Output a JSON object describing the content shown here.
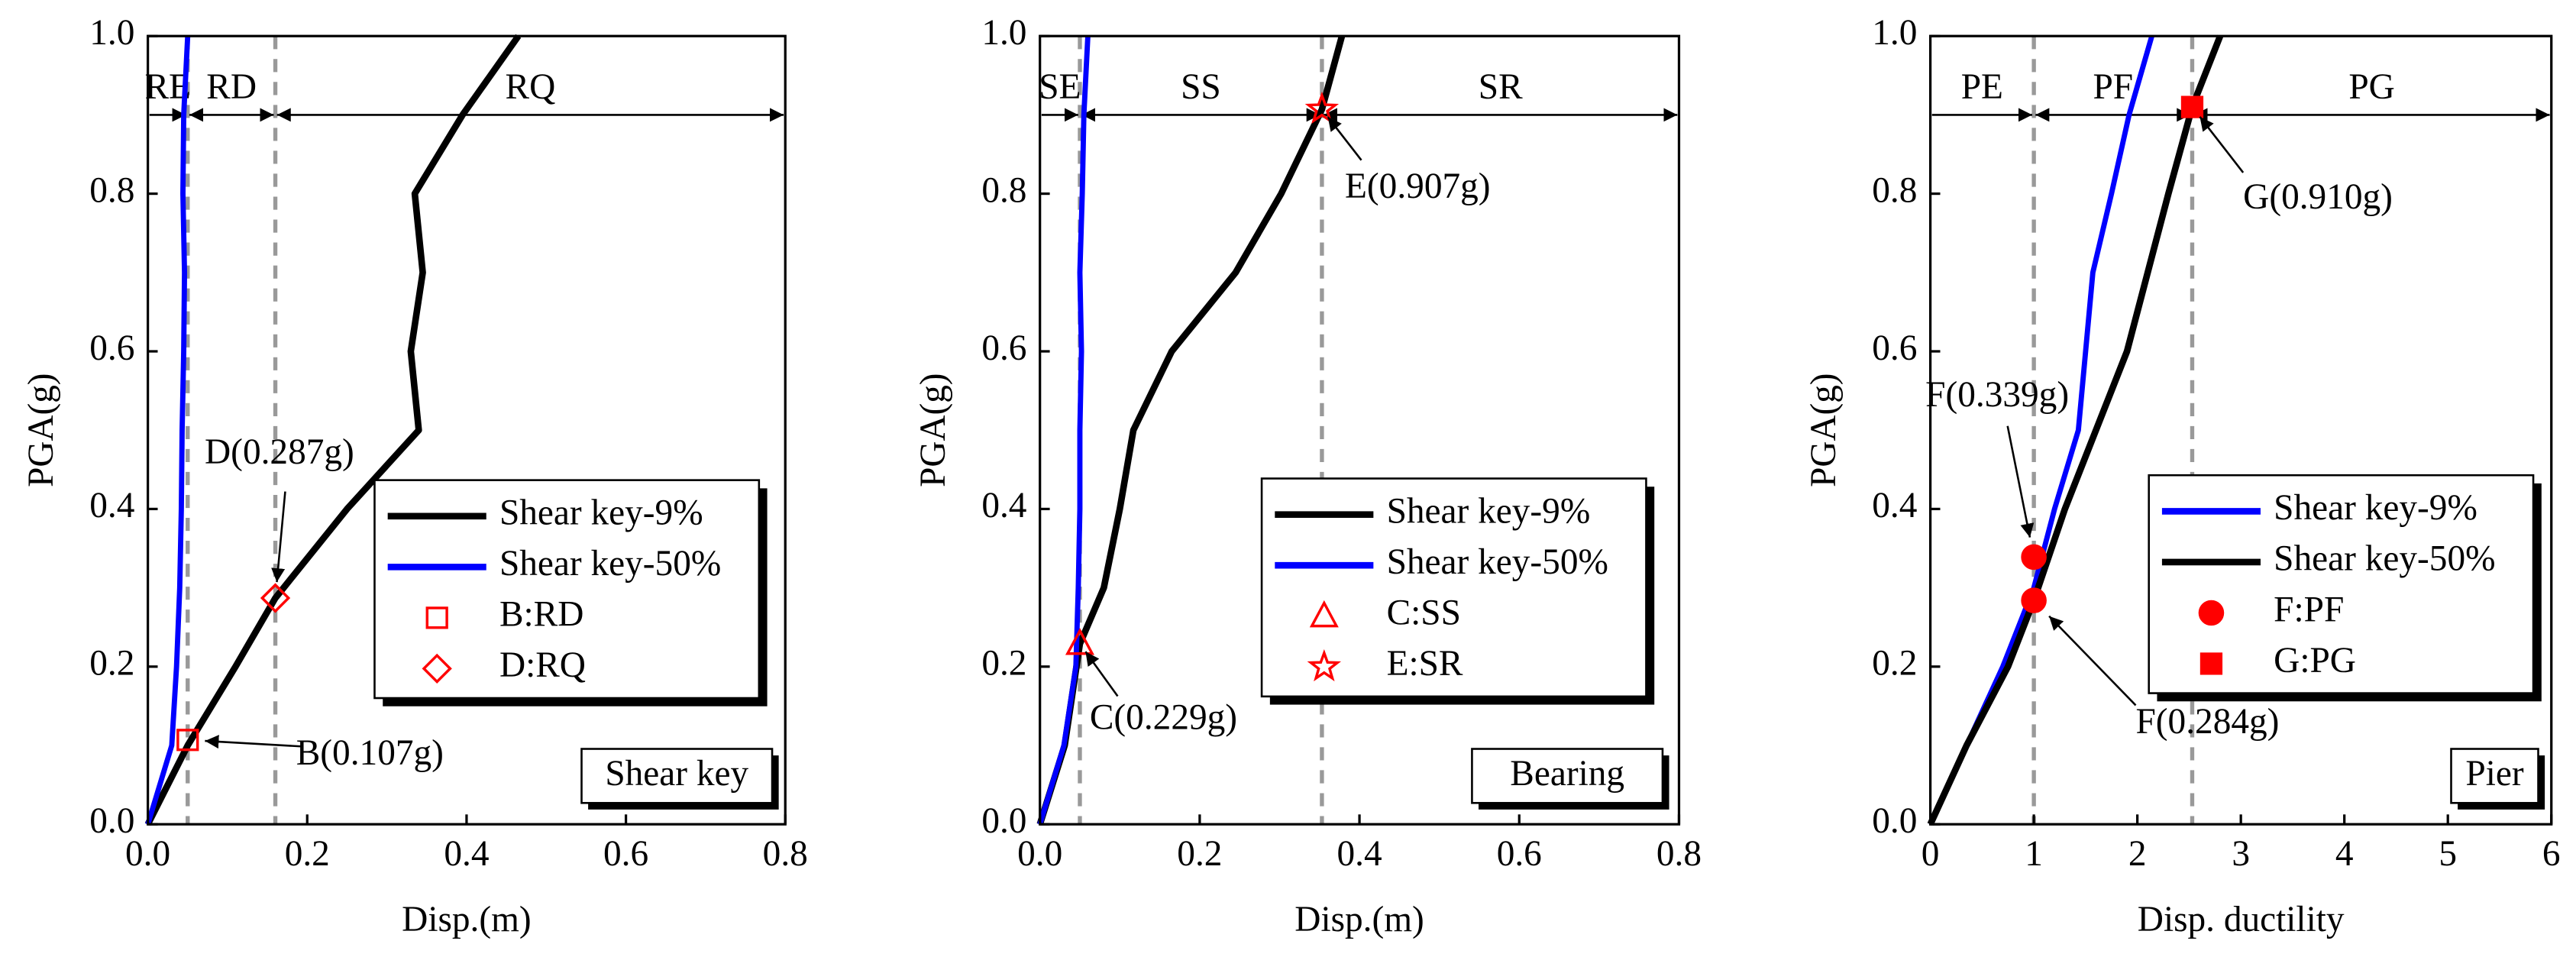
{
  "chart_data": [
    {
      "type": "line",
      "xlabel": "Disp.(m)",
      "ylabel": "PGA(g)",
      "xlim": [
        0,
        0.8
      ],
      "ylim": [
        0,
        1
      ],
      "xticks": [
        {
          "value": 0,
          "label": "0.0"
        },
        0.2,
        0.4,
        0.6,
        0.8
      ],
      "yticks": [
        {
          "value": 0,
          "label": "0.0"
        },
        0.2,
        0.4,
        0.6,
        0.8,
        {
          "value": 1,
          "label": "1.0"
        }
      ],
      "thresholds": [
        0.05,
        0.16
      ],
      "regions": [
        "RE",
        "RD",
        "RQ"
      ],
      "box_label": "Shear key",
      "series": [
        {
          "name": "Shear key-9%",
          "color": "#000000",
          "x": [
            0,
            0.05,
            0.11,
            0.16,
            0.25,
            0.34,
            0.33,
            0.345,
            0.335,
            0.395,
            0.465
          ],
          "values": [
            0,
            0.1,
            0.2,
            0.287,
            0.4,
            0.5,
            0.6,
            0.7,
            0.8,
            0.9,
            1.0
          ]
        },
        {
          "name": "Shear key-50%",
          "color": "#0000ff",
          "x": [
            0,
            0.03,
            0.036,
            0.04,
            0.042,
            0.043,
            0.045,
            0.046,
            0.044,
            0.045,
            0.05
          ],
          "values": [
            0,
            0.1,
            0.2,
            0.3,
            0.4,
            0.5,
            0.6,
            0.7,
            0.8,
            0.9,
            1.0
          ]
        },
        {
          "name": "B:RD",
          "color": "#ff0000",
          "marker": "square",
          "filled": false,
          "x": [
            0.05
          ],
          "values": [
            0.107
          ],
          "annotation": "B(0.107g)"
        },
        {
          "name": "D:RQ",
          "color": "#ff0000",
          "marker": "diamond",
          "filled": false,
          "x": [
            0.16
          ],
          "values": [
            0.287
          ],
          "annotation": "D(0.287g)"
        }
      ]
    },
    {
      "type": "line",
      "xlabel": "Disp.(m)",
      "ylabel": "PGA(g)",
      "xlim": [
        0,
        0.8
      ],
      "ylim": [
        0,
        1
      ],
      "xticks": [
        {
          "value": 0,
          "label": "0.0"
        },
        0.2,
        0.4,
        0.6,
        0.8
      ],
      "yticks": [
        {
          "value": 0,
          "label": "0.0"
        },
        0.2,
        0.4,
        0.6,
        0.8,
        {
          "value": 1,
          "label": "1.0"
        }
      ],
      "thresholds": [
        0.05,
        0.353
      ],
      "regions": [
        "SE",
        "SS",
        "SR"
      ],
      "box_label": "Bearing",
      "series": [
        {
          "name": "Shear key-9%",
          "color": "#000000",
          "x": [
            0,
            0.031,
            0.05,
            0.08,
            0.1,
            0.117,
            0.165,
            0.245,
            0.302,
            0.353,
            0.378
          ],
          "values": [
            0,
            0.1,
            0.229,
            0.3,
            0.4,
            0.5,
            0.6,
            0.7,
            0.8,
            0.907,
            1.0
          ]
        },
        {
          "name": "Shear key-50%",
          "color": "#0000ff",
          "x": [
            0,
            0.03,
            0.045,
            0.048,
            0.05,
            0.05,
            0.052,
            0.05,
            0.053,
            0.055,
            0.06
          ],
          "values": [
            0,
            0.1,
            0.2,
            0.3,
            0.4,
            0.5,
            0.6,
            0.7,
            0.8,
            0.9,
            1.0
          ]
        },
        {
          "name": "C:SS",
          "color": "#ff0000",
          "marker": "triangle",
          "filled": false,
          "x": [
            0.05
          ],
          "values": [
            0.229
          ],
          "annotation": "C(0.229g)"
        },
        {
          "name": "E:SR",
          "color": "#ff0000",
          "marker": "star",
          "filled": false,
          "x": [
            0.353
          ],
          "values": [
            0.907
          ],
          "annotation": "E(0.907g)"
        }
      ]
    },
    {
      "type": "line",
      "xlabel": "Disp. ductility",
      "ylabel": "PGA(g)",
      "xlim": [
        0,
        6
      ],
      "ylim": [
        0,
        1
      ],
      "xticks": [
        0,
        1,
        2,
        3,
        4,
        5,
        6
      ],
      "yticks": [
        {
          "value": 0,
          "label": "0.0"
        },
        0.2,
        0.4,
        0.6,
        0.8,
        {
          "value": 1,
          "label": "1.0"
        }
      ],
      "thresholds": [
        1,
        2.53
      ],
      "regions": [
        "PE",
        "PF",
        "PG"
      ],
      "box_label": "Pier",
      "series": [
        {
          "name": "Shear key-9%",
          "color": "#0000ff",
          "x": [
            0,
            0.35,
            0.7,
            1.0,
            1.2,
            1.43,
            1.5,
            1.57,
            1.75,
            1.92,
            2.14
          ],
          "values": [
            0,
            0.1,
            0.2,
            0.3,
            0.4,
            0.5,
            0.6,
            0.7,
            0.8,
            0.9,
            1.0
          ]
        },
        {
          "name": "Shear key-50%",
          "color": "#000000",
          "x": [
            0,
            0.35,
            0.75,
            1.0,
            1.3,
            1.6,
            1.9,
            2.1,
            2.3,
            2.53,
            2.8
          ],
          "values": [
            0,
            0.1,
            0.2,
            0.284,
            0.4,
            0.5,
            0.6,
            0.7,
            0.8,
            0.91,
            1.0
          ]
        },
        {
          "name": "F:PF",
          "color": "#ff0000",
          "marker": "circle",
          "filled": true,
          "x": [
            1,
            1
          ],
          "values": [
            0.339,
            0.284
          ],
          "annotation": [
            "F(0.339g)",
            "F(0.284g)"
          ]
        },
        {
          "name": "G:PG",
          "color": "#ff0000",
          "marker": "square",
          "filled": true,
          "x": [
            2.53
          ],
          "values": [
            0.91
          ],
          "annotation": "G(0.910g)"
        }
      ]
    }
  ]
}
